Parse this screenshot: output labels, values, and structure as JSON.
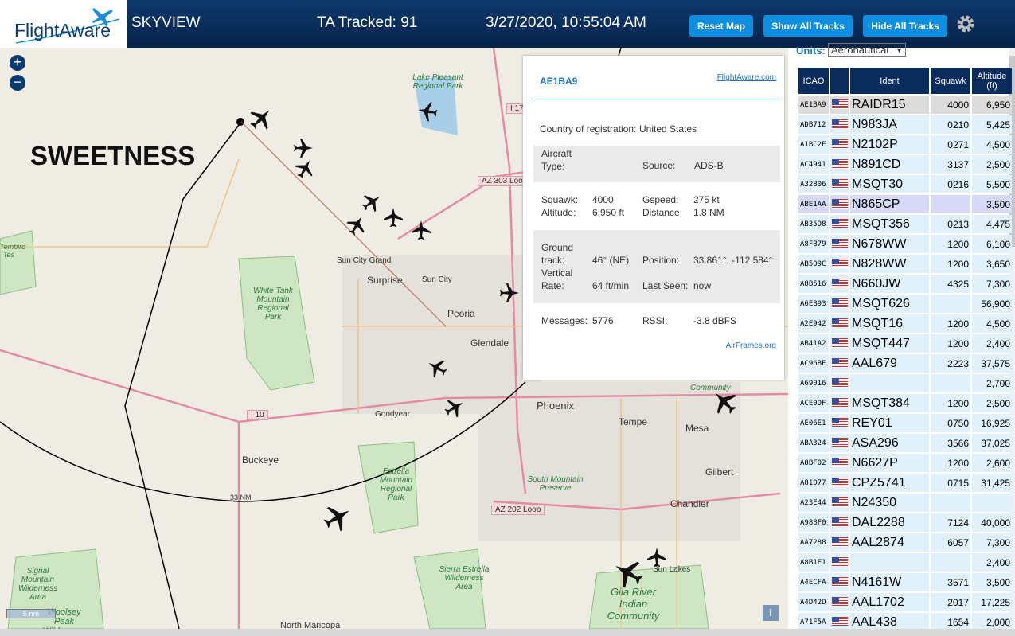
{
  "header": {
    "logo": "FlightAware",
    "app": "SKYVIEW",
    "tracked": "TA Tracked: 91",
    "datetime": "3/27/2020, 10:55:04 AM",
    "buttons": [
      "Reset Map",
      "Show All Tracks",
      "Hide All Tracks"
    ]
  },
  "map": {
    "range_label": "33 NM",
    "scale": "5 nm",
    "overlay": "SWEETNESS",
    "places": [
      "Lake Pleasant Regional Park",
      "Sun City Grand",
      "Surprise",
      "Sun City",
      "Peoria",
      "Glendale",
      "Phoenix",
      "Tempe",
      "Mesa",
      "Gilbert",
      "Chandler",
      "Goodyear",
      "Buckeye",
      "White Tank Mountain Regional Park",
      "Estrella Mountain Regional Park",
      "South Mountain Preserve",
      "Sierra Estrella Wilderness Area",
      "Signal Mountain Wilderness Area",
      "Woolsey Peak Wilderness",
      "Gila River Indian Community",
      "Sun Lakes",
      "North Maricopa",
      "Community",
      "Tembird Tes"
    ],
    "roads": [
      "I 17",
      "AZ 303 Loo",
      "I 10",
      "AZ 202 Loop"
    ]
  },
  "popup": {
    "hex": "AE1BA9",
    "link": "FlightAware.com",
    "country_label": "Country of registration:",
    "country": "United States",
    "type_label": "Aircraft Type:",
    "source_label": "Source:",
    "source": "ADS-B",
    "squawk_label": "Squawk:",
    "squawk": "4000",
    "altitude_label": "Altitude:",
    "altitude": "6,950 ft",
    "gspeed_label": "Gspeed:",
    "gspeed": "275 kt",
    "distance_label": "Distance:",
    "distance": "1.8 NM",
    "track_label": "Ground track:",
    "track": "46° (NE)",
    "position_label": "Position:",
    "position": "33.861°, -112.584°",
    "vrate_label": "Vertical Rate:",
    "vrate": "64 ft/min",
    "seen_label": "Last Seen:",
    "seen": "now",
    "messages_label": "Messages:",
    "messages": "5776",
    "rssi_label": "RSSI:",
    "rssi": "-3.8 dBFS",
    "airframes": "AirFrames.org"
  },
  "units": {
    "label": "Units:",
    "value": "Aeronautical"
  },
  "table": {
    "columns": [
      "ICAO",
      "Ident",
      "Squawk",
      "Altitude (ft)"
    ],
    "rows": [
      {
        "icao": "AE1BA9",
        "ident": "RAIDR15",
        "squawk": "4000",
        "altitude": "6,950"
      },
      {
        "icao": "ADB712",
        "ident": "N983JA",
        "squawk": "0210",
        "altitude": "5,425"
      },
      {
        "icao": "A1BC2E",
        "ident": "N2102P",
        "squawk": "0271",
        "altitude": "4,500"
      },
      {
        "icao": "AC4941",
        "ident": "N891CD",
        "squawk": "3137",
        "altitude": "2,500"
      },
      {
        "icao": "A32806",
        "ident": "MSQT30",
        "squawk": "0216",
        "altitude": "5,500"
      },
      {
        "icao": "ABE1AA",
        "ident": "N865CP",
        "altitude": "3,500"
      },
      {
        "icao": "AB35D8",
        "ident": "MSQT356",
        "squawk": "0213",
        "altitude": "4,475"
      },
      {
        "icao": "A8FB79",
        "ident": "N678WW",
        "squawk": "1200",
        "altitude": "6,100"
      },
      {
        "icao": "AB509C",
        "ident": "N828WW",
        "squawk": "1200",
        "altitude": "3,650"
      },
      {
        "icao": "A8B516",
        "ident": "N660JW",
        "squawk": "4325",
        "altitude": "7,300"
      },
      {
        "icao": "A6EB93",
        "ident": "MSQT626",
        "altitude": "56,900"
      },
      {
        "icao": "A2E942",
        "ident": "MSQT16",
        "squawk": "1200",
        "altitude": "4,500"
      },
      {
        "icao": "AB41A2",
        "ident": "MSQT447",
        "squawk": "1200",
        "altitude": "2,400"
      },
      {
        "icao": "AC96BE",
        "ident": "AAL679",
        "squawk": "2223",
        "altitude": "37,575"
      },
      {
        "icao": "A69016",
        "altitude": "2,700"
      },
      {
        "icao": "ACE0DF",
        "ident": "MSQT384",
        "squawk": "1200",
        "altitude": "2,500"
      },
      {
        "icao": "AE06E1",
        "ident": "REY01",
        "squawk": "0750",
        "altitude": "16,925"
      },
      {
        "icao": "ABA324",
        "ident": "ASA296",
        "squawk": "3566",
        "altitude": "37,025"
      },
      {
        "icao": "A8BF02",
        "ident": "N6627P",
        "squawk": "1200",
        "altitude": "2,600"
      },
      {
        "icao": "A81077",
        "ident": "CPZ5741",
        "squawk": "0715",
        "altitude": "31,425"
      },
      {
        "icao": "A23E44",
        "ident": "N24350"
      },
      {
        "icao": "A988F0",
        "ident": "DAL2288",
        "squawk": "7124",
        "altitude": "40,000"
      },
      {
        "icao": "AA7288",
        "ident": "AAL2874",
        "squawk": "6057",
        "altitude": "7,300"
      },
      {
        "icao": "A8B1E1",
        "altitude": "2,400"
      },
      {
        "icao": "A4ECFA",
        "ident": "N4161W",
        "squawk": "3571",
        "altitude": "3,500"
      },
      {
        "icao": "A4D42D",
        "ident": "AAL1702",
        "squawk": "2017",
        "altitude": "17,225"
      },
      {
        "icao": "A71F5A",
        "ident": "AAL438",
        "squawk": "1654",
        "altitude": "2,000"
      }
    ]
  }
}
